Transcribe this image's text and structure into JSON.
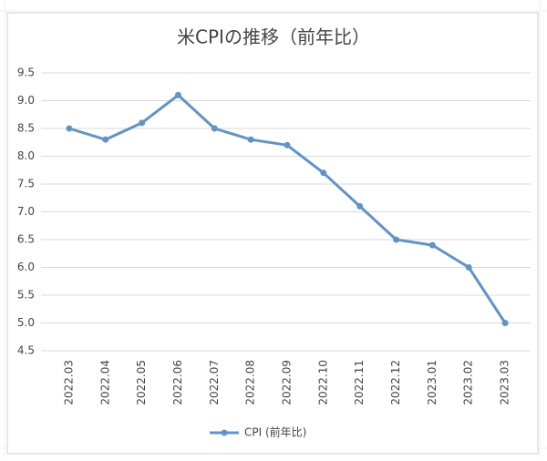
{
  "chart_data": {
    "type": "line",
    "title": "米CPIの推移（前年比）",
    "categories": [
      "2022.03",
      "2022.04",
      "2022.05",
      "2022.06",
      "2022.07",
      "2022.08",
      "2022.09",
      "2022.10",
      "2022.11",
      "2022.12",
      "2023.01",
      "2023.02",
      "2023.03"
    ],
    "series": [
      {
        "name": "CPI (前年比)",
        "color": "#6393c4",
        "values": [
          8.5,
          8.3,
          8.6,
          9.1,
          8.5,
          8.3,
          8.2,
          7.7,
          7.1,
          6.5,
          6.4,
          6.0,
          5.0
        ]
      }
    ],
    "ylim": [
      4.5,
      9.5
    ],
    "yticks": [
      4.5,
      {
        "value": 5,
        "label": "5.0"
      },
      5.5,
      {
        "value": 6,
        "label": "6.0"
      },
      6.5,
      {
        "value": 7,
        "label": "7.0"
      },
      7.5,
      {
        "value": 8,
        "label": "8.0"
      },
      8.5,
      {
        "value": 9,
        "label": "9.0"
      },
      9.5
    ],
    "grid": true,
    "legend": "bottom"
  }
}
